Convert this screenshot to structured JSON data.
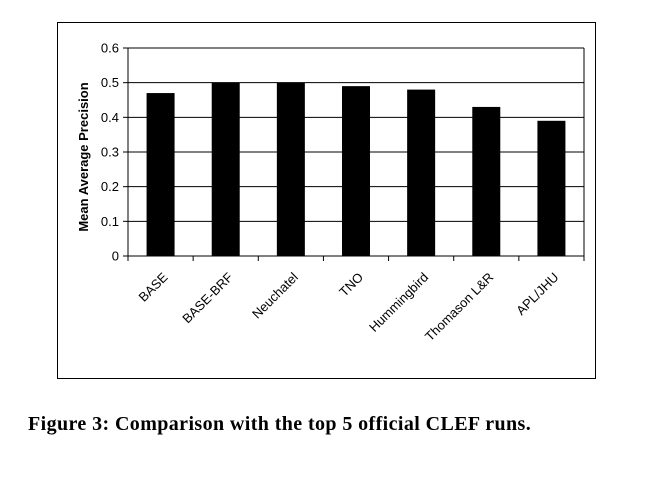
{
  "caption": "Figure 3: Comparison with the top 5 official CLEF runs.",
  "chart_data": {
    "type": "bar",
    "title": "",
    "xlabel": "",
    "ylabel": "Mean Average Precision",
    "categories": [
      "BASE",
      "BASE-BRF",
      "Neuchatel",
      "TNO",
      "Hummingbird",
      "Thomason L&R",
      "APL/JHU"
    ],
    "values": [
      0.47,
      0.5,
      0.5,
      0.49,
      0.48,
      0.43,
      0.39
    ],
    "ylim": [
      0,
      0.6
    ],
    "yticks": [
      "0",
      "0.1",
      "0.2",
      "0.3",
      "0.4",
      "0.5",
      "0.6"
    ],
    "grid": "horizontal",
    "bar_color": "#000000",
    "legend": "none"
  }
}
